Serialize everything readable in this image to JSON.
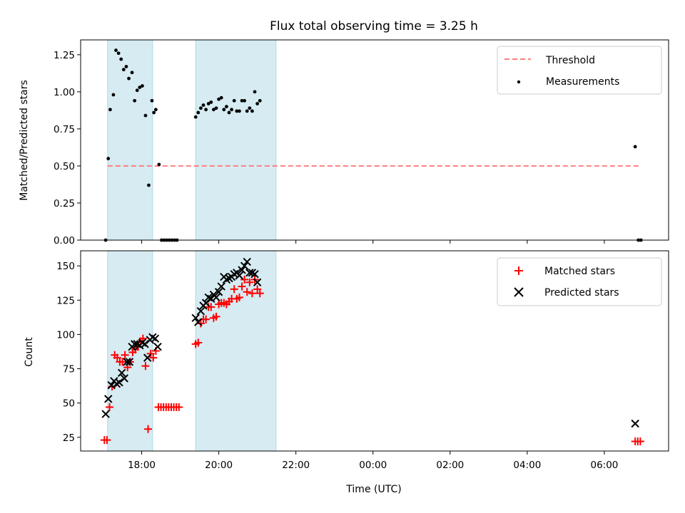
{
  "chart_data": [
    {
      "type": "scatter",
      "title": "Flux total observing time = 3.25 h",
      "xlabel": "",
      "ylabel": "Matched/Predicted stars",
      "ylim": [
        0,
        1.35
      ],
      "yticks": [
        "0.00",
        "0.25",
        "0.50",
        "0.75",
        "1.00",
        "1.25"
      ],
      "ytick_values": [
        0,
        0.25,
        0.5,
        0.75,
        1.0,
        1.25
      ],
      "legend": {
        "placement": "top-right",
        "entries": [
          "Threshold",
          "Measurements"
        ]
      },
      "threshold": {
        "name": "Threshold",
        "value": 0.5,
        "x_start": "17:07",
        "x_end": "06:57",
        "color": "#ff7f7f"
      },
      "observing_windows": [
        {
          "start": "17:07",
          "end": "18:17"
        },
        {
          "start": "19:24",
          "end": "21:29"
        }
      ],
      "series": [
        {
          "name": "Measurements",
          "color": "#000000",
          "points": [
            [
              "17:04",
              0.0
            ],
            [
              "17:08",
              0.55
            ],
            [
              "17:11",
              0.88
            ],
            [
              "17:16",
              0.98
            ],
            [
              "17:20",
              1.28
            ],
            [
              "17:24",
              1.26
            ],
            [
              "17:28",
              1.22
            ],
            [
              "17:32",
              1.15
            ],
            [
              "17:36",
              1.17
            ],
            [
              "17:40",
              1.09
            ],
            [
              "17:45",
              1.13
            ],
            [
              "17:49",
              0.94
            ],
            [
              "17:53",
              1.01
            ],
            [
              "17:57",
              1.03
            ],
            [
              "18:01",
              1.04
            ],
            [
              "18:06",
              0.84
            ],
            [
              "18:11",
              0.37
            ],
            [
              "18:16",
              0.94
            ],
            [
              "18:19",
              0.86
            ],
            [
              "18:22",
              0.88
            ],
            [
              "18:27",
              0.51
            ],
            [
              "18:31",
              0.0
            ],
            [
              "18:35",
              0.0
            ],
            [
              "18:39",
              0.0
            ],
            [
              "18:43",
              0.0
            ],
            [
              "18:47",
              0.0
            ],
            [
              "18:51",
              0.0
            ],
            [
              "18:55",
              0.0
            ],
            [
              "19:24",
              0.83
            ],
            [
              "19:28",
              0.86
            ],
            [
              "19:32",
              0.89
            ],
            [
              "19:36",
              0.91
            ],
            [
              "19:40",
              0.88
            ],
            [
              "19:44",
              0.92
            ],
            [
              "19:48",
              0.93
            ],
            [
              "19:52",
              0.88
            ],
            [
              "19:56",
              0.89
            ],
            [
              "20:00",
              0.95
            ],
            [
              "20:04",
              0.96
            ],
            [
              "20:08",
              0.88
            ],
            [
              "20:12",
              0.9
            ],
            [
              "20:16",
              0.86
            ],
            [
              "20:20",
              0.88
            ],
            [
              "20:24",
              0.94
            ],
            [
              "20:28",
              0.87
            ],
            [
              "20:32",
              0.87
            ],
            [
              "20:36",
              0.94
            ],
            [
              "20:40",
              0.94
            ],
            [
              "20:44",
              0.87
            ],
            [
              "20:48",
              0.89
            ],
            [
              "20:52",
              0.87
            ],
            [
              "20:56",
              1.0
            ],
            [
              "21:00",
              0.92
            ],
            [
              "21:04",
              0.94
            ],
            [
              "06:48",
              0.63
            ],
            [
              "06:53",
              0.0
            ],
            [
              "06:57",
              0.0
            ]
          ]
        }
      ]
    },
    {
      "type": "scatter",
      "title": "",
      "xlabel": "Time (UTC)",
      "ylabel": "Count",
      "ylim": [
        15,
        161
      ],
      "yticks": [
        "25",
        "50",
        "75",
        "100",
        "125",
        "150"
      ],
      "ytick_values": [
        25,
        50,
        75,
        100,
        125,
        150
      ],
      "xlim": [
        "16:25",
        "07:40"
      ],
      "xticks": [
        "18:00",
        "20:00",
        "22:00",
        "00:00",
        "02:00",
        "04:00",
        "06:00"
      ],
      "legend": {
        "placement": "top-right",
        "entries": [
          "Matched stars",
          "Predicted stars"
        ]
      },
      "observing_windows": [
        {
          "start": "17:07",
          "end": "18:17"
        },
        {
          "start": "19:24",
          "end": "21:29"
        }
      ],
      "series": [
        {
          "name": "Matched stars",
          "marker": "plus",
          "color": "#ff0000",
          "points": [
            [
              "17:02",
              23
            ],
            [
              "17:06",
              23
            ],
            [
              "17:10",
              47
            ],
            [
              "17:14",
              62
            ],
            [
              "17:18",
              85
            ],
            [
              "17:22",
              83
            ],
            [
              "17:26",
              80
            ],
            [
              "17:30",
              80
            ],
            [
              "17:34",
              85
            ],
            [
              "17:38",
              76
            ],
            [
              "17:42",
              80
            ],
            [
              "17:46",
              87
            ],
            [
              "17:50",
              89
            ],
            [
              "17:54",
              91
            ],
            [
              "17:58",
              95
            ],
            [
              "18:02",
              97
            ],
            [
              "18:06",
              77
            ],
            [
              "18:10",
              31
            ],
            [
              "18:14",
              86
            ],
            [
              "18:18",
              83
            ],
            [
              "18:22",
              88
            ],
            [
              "18:26",
              47
            ],
            [
              "18:30",
              47
            ],
            [
              "18:34",
              47
            ],
            [
              "18:38",
              47
            ],
            [
              "18:42",
              47
            ],
            [
              "18:46",
              47
            ],
            [
              "18:50",
              47
            ],
            [
              "18:54",
              47
            ],
            [
              "18:58",
              47
            ],
            [
              "19:24",
              93
            ],
            [
              "19:28",
              94
            ],
            [
              "19:32",
              108
            ],
            [
              "19:36",
              111
            ],
            [
              "19:40",
              111
            ],
            [
              "19:44",
              120
            ],
            [
              "19:48",
              120
            ],
            [
              "19:52",
              112
            ],
            [
              "19:56",
              113
            ],
            [
              "20:00",
              122
            ],
            [
              "20:04",
              123
            ],
            [
              "20:08",
              123
            ],
            [
              "20:12",
              122
            ],
            [
              "20:16",
              124
            ],
            [
              "20:20",
              126
            ],
            [
              "20:24",
              133
            ],
            [
              "20:28",
              126
            ],
            [
              "20:32",
              127
            ],
            [
              "20:36",
              135
            ],
            [
              "20:40",
              140
            ],
            [
              "20:44",
              131
            ],
            [
              "20:48",
              138
            ],
            [
              "20:52",
              130
            ],
            [
              "20:56",
              140
            ],
            [
              "21:00",
              133
            ],
            [
              "21:04",
              130
            ],
            [
              "06:48",
              22
            ],
            [
              "06:52",
              22
            ],
            [
              "06:56",
              22
            ]
          ]
        },
        {
          "name": "Predicted stars",
          "marker": "x",
          "color": "#000000",
          "points": [
            [
              "17:04",
              42
            ],
            [
              "17:08",
              53
            ],
            [
              "17:13",
              63
            ],
            [
              "17:17",
              66
            ],
            [
              "17:21",
              64
            ],
            [
              "17:25",
              65
            ],
            [
              "17:29",
              72
            ],
            [
              "17:33",
              68
            ],
            [
              "17:37",
              80
            ],
            [
              "17:41",
              80
            ],
            [
              "17:45",
              91
            ],
            [
              "17:49",
              93
            ],
            [
              "17:53",
              93
            ],
            [
              "17:57",
              92
            ],
            [
              "18:01",
              94
            ],
            [
              "18:05",
              93
            ],
            [
              "18:09",
              83
            ],
            [
              "18:13",
              96
            ],
            [
              "18:17",
              98
            ],
            [
              "18:21",
              97
            ],
            [
              "18:25",
              91
            ],
            [
              "19:24",
              112
            ],
            [
              "19:28",
              109
            ],
            [
              "19:32",
              117
            ],
            [
              "19:36",
              121
            ],
            [
              "19:40",
              123
            ],
            [
              "19:44",
              127
            ],
            [
              "19:48",
              126
            ],
            [
              "19:52",
              129
            ],
            [
              "19:56",
              127
            ],
            [
              "20:00",
              131
            ],
            [
              "20:04",
              135
            ],
            [
              "20:08",
              142
            ],
            [
              "20:12",
              140
            ],
            [
              "20:16",
              141
            ],
            [
              "20:20",
              142
            ],
            [
              "20:24",
              144
            ],
            [
              "20:28",
              145
            ],
            [
              "20:32",
              143
            ],
            [
              "20:36",
              147
            ],
            [
              "20:40",
              150
            ],
            [
              "20:44",
              153
            ],
            [
              "20:48",
              145
            ],
            [
              "20:52",
              145
            ],
            [
              "20:56",
              144
            ],
            [
              "21:00",
              138
            ],
            [
              "06:48",
              35
            ]
          ]
        }
      ]
    }
  ]
}
